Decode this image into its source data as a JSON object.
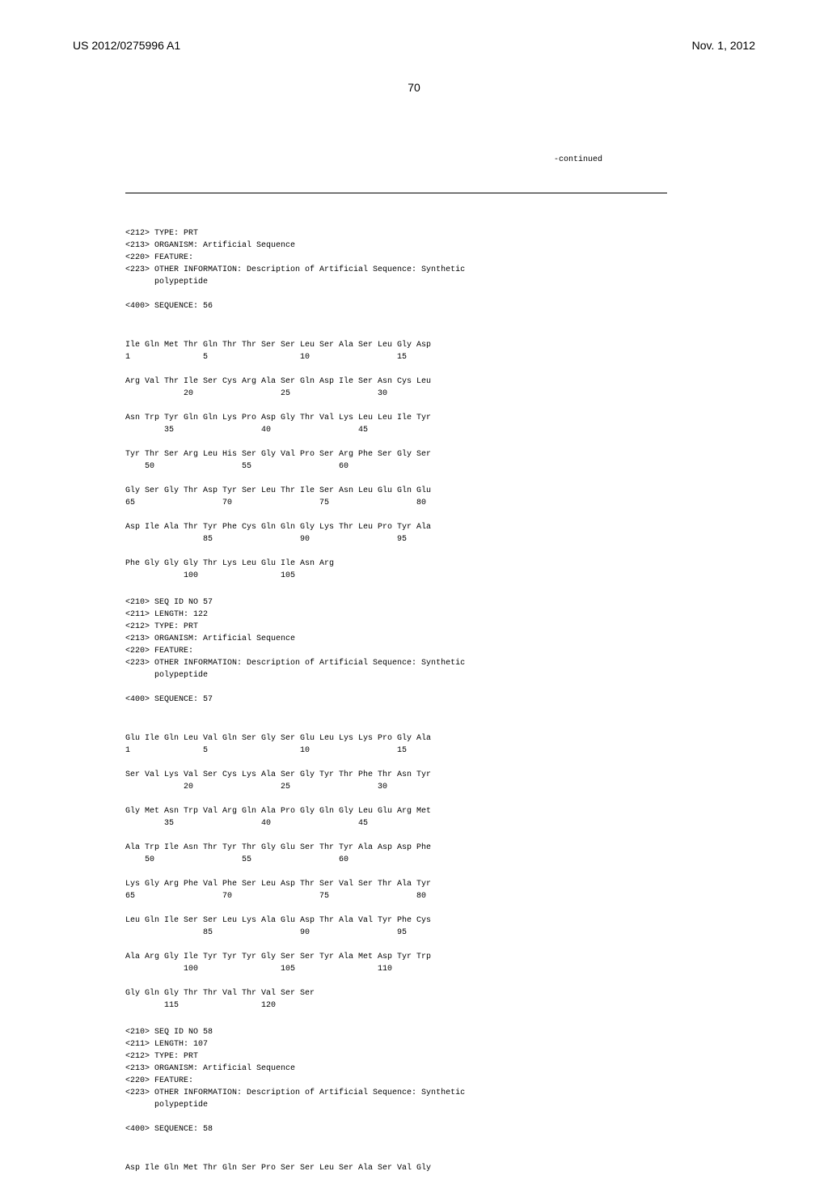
{
  "header": {
    "patent_number": "US 2012/0275996 A1",
    "date": "Nov. 1, 2012",
    "page": "70"
  },
  "continued_label": "-continued",
  "blocks": [
    {
      "type": "meta",
      "lines": [
        "<212> TYPE: PRT",
        "<213> ORGANISM: Artificial Sequence",
        "<220> FEATURE:",
        "<223> OTHER INFORMATION: Description of Artificial Sequence: Synthetic",
        "      polypeptide",
        "",
        "<400> SEQUENCE: 56"
      ]
    },
    {
      "type": "seq",
      "rows": [
        {
          "aa": "Ile Gln Met Thr Gln Thr Thr Ser Ser Leu Ser Ala Ser Leu Gly Asp",
          "nums": "1               5                   10                  15"
        },
        {
          "aa": "Arg Val Thr Ile Ser Cys Arg Ala Ser Gln Asp Ile Ser Asn Cys Leu",
          "nums": "            20                  25                  30"
        },
        {
          "aa": "Asn Trp Tyr Gln Gln Lys Pro Asp Gly Thr Val Lys Leu Leu Ile Tyr",
          "nums": "        35                  40                  45"
        },
        {
          "aa": "Tyr Thr Ser Arg Leu His Ser Gly Val Pro Ser Arg Phe Ser Gly Ser",
          "nums": "    50                  55                  60"
        },
        {
          "aa": "Gly Ser Gly Thr Asp Tyr Ser Leu Thr Ile Ser Asn Leu Glu Gln Glu",
          "nums": "65                  70                  75                  80"
        },
        {
          "aa": "Asp Ile Ala Thr Tyr Phe Cys Gln Gln Gly Lys Thr Leu Pro Tyr Ala",
          "nums": "                85                  90                  95"
        },
        {
          "aa": "Phe Gly Gly Gly Thr Lys Leu Glu Ile Asn Arg",
          "nums": "            100                 105"
        }
      ]
    },
    {
      "type": "meta",
      "lines": [
        "<210> SEQ ID NO 57",
        "<211> LENGTH: 122",
        "<212> TYPE: PRT",
        "<213> ORGANISM: Artificial Sequence",
        "<220> FEATURE:",
        "<223> OTHER INFORMATION: Description of Artificial Sequence: Synthetic",
        "      polypeptide",
        "",
        "<400> SEQUENCE: 57"
      ]
    },
    {
      "type": "seq",
      "rows": [
        {
          "aa": "Glu Ile Gln Leu Val Gln Ser Gly Ser Glu Leu Lys Lys Pro Gly Ala",
          "nums": "1               5                   10                  15"
        },
        {
          "aa": "Ser Val Lys Val Ser Cys Lys Ala Ser Gly Tyr Thr Phe Thr Asn Tyr",
          "nums": "            20                  25                  30"
        },
        {
          "aa": "Gly Met Asn Trp Val Arg Gln Ala Pro Gly Gln Gly Leu Glu Arg Met",
          "nums": "        35                  40                  45"
        },
        {
          "aa": "Ala Trp Ile Asn Thr Tyr Thr Gly Glu Ser Thr Tyr Ala Asp Asp Phe",
          "nums": "    50                  55                  60"
        },
        {
          "aa": "Lys Gly Arg Phe Val Phe Ser Leu Asp Thr Ser Val Ser Thr Ala Tyr",
          "nums": "65                  70                  75                  80"
        },
        {
          "aa": "Leu Gln Ile Ser Ser Leu Lys Ala Glu Asp Thr Ala Val Tyr Phe Cys",
          "nums": "                85                  90                  95"
        },
        {
          "aa": "Ala Arg Gly Ile Tyr Tyr Tyr Gly Ser Ser Tyr Ala Met Asp Tyr Trp",
          "nums": "            100                 105                 110"
        },
        {
          "aa": "Gly Gln Gly Thr Thr Val Thr Val Ser Ser",
          "nums": "        115                 120"
        }
      ]
    },
    {
      "type": "meta",
      "lines": [
        "<210> SEQ ID NO 58",
        "<211> LENGTH: 107",
        "<212> TYPE: PRT",
        "<213> ORGANISM: Artificial Sequence",
        "<220> FEATURE:",
        "<223> OTHER INFORMATION: Description of Artificial Sequence: Synthetic",
        "      polypeptide",
        "",
        "<400> SEQUENCE: 58"
      ]
    },
    {
      "type": "seq",
      "rows": [
        {
          "aa": "Asp Ile Gln Met Thr Gln Ser Pro Ser Ser Leu Ser Ala Ser Val Gly",
          "nums": ""
        }
      ]
    }
  ],
  "style": {
    "font_mono": "Courier New",
    "font_sans": "Arial",
    "text_color": "#000000",
    "background": "#ffffff",
    "header_fontsize": 14,
    "body_fontsize": 10,
    "line_height": 1.5
  }
}
